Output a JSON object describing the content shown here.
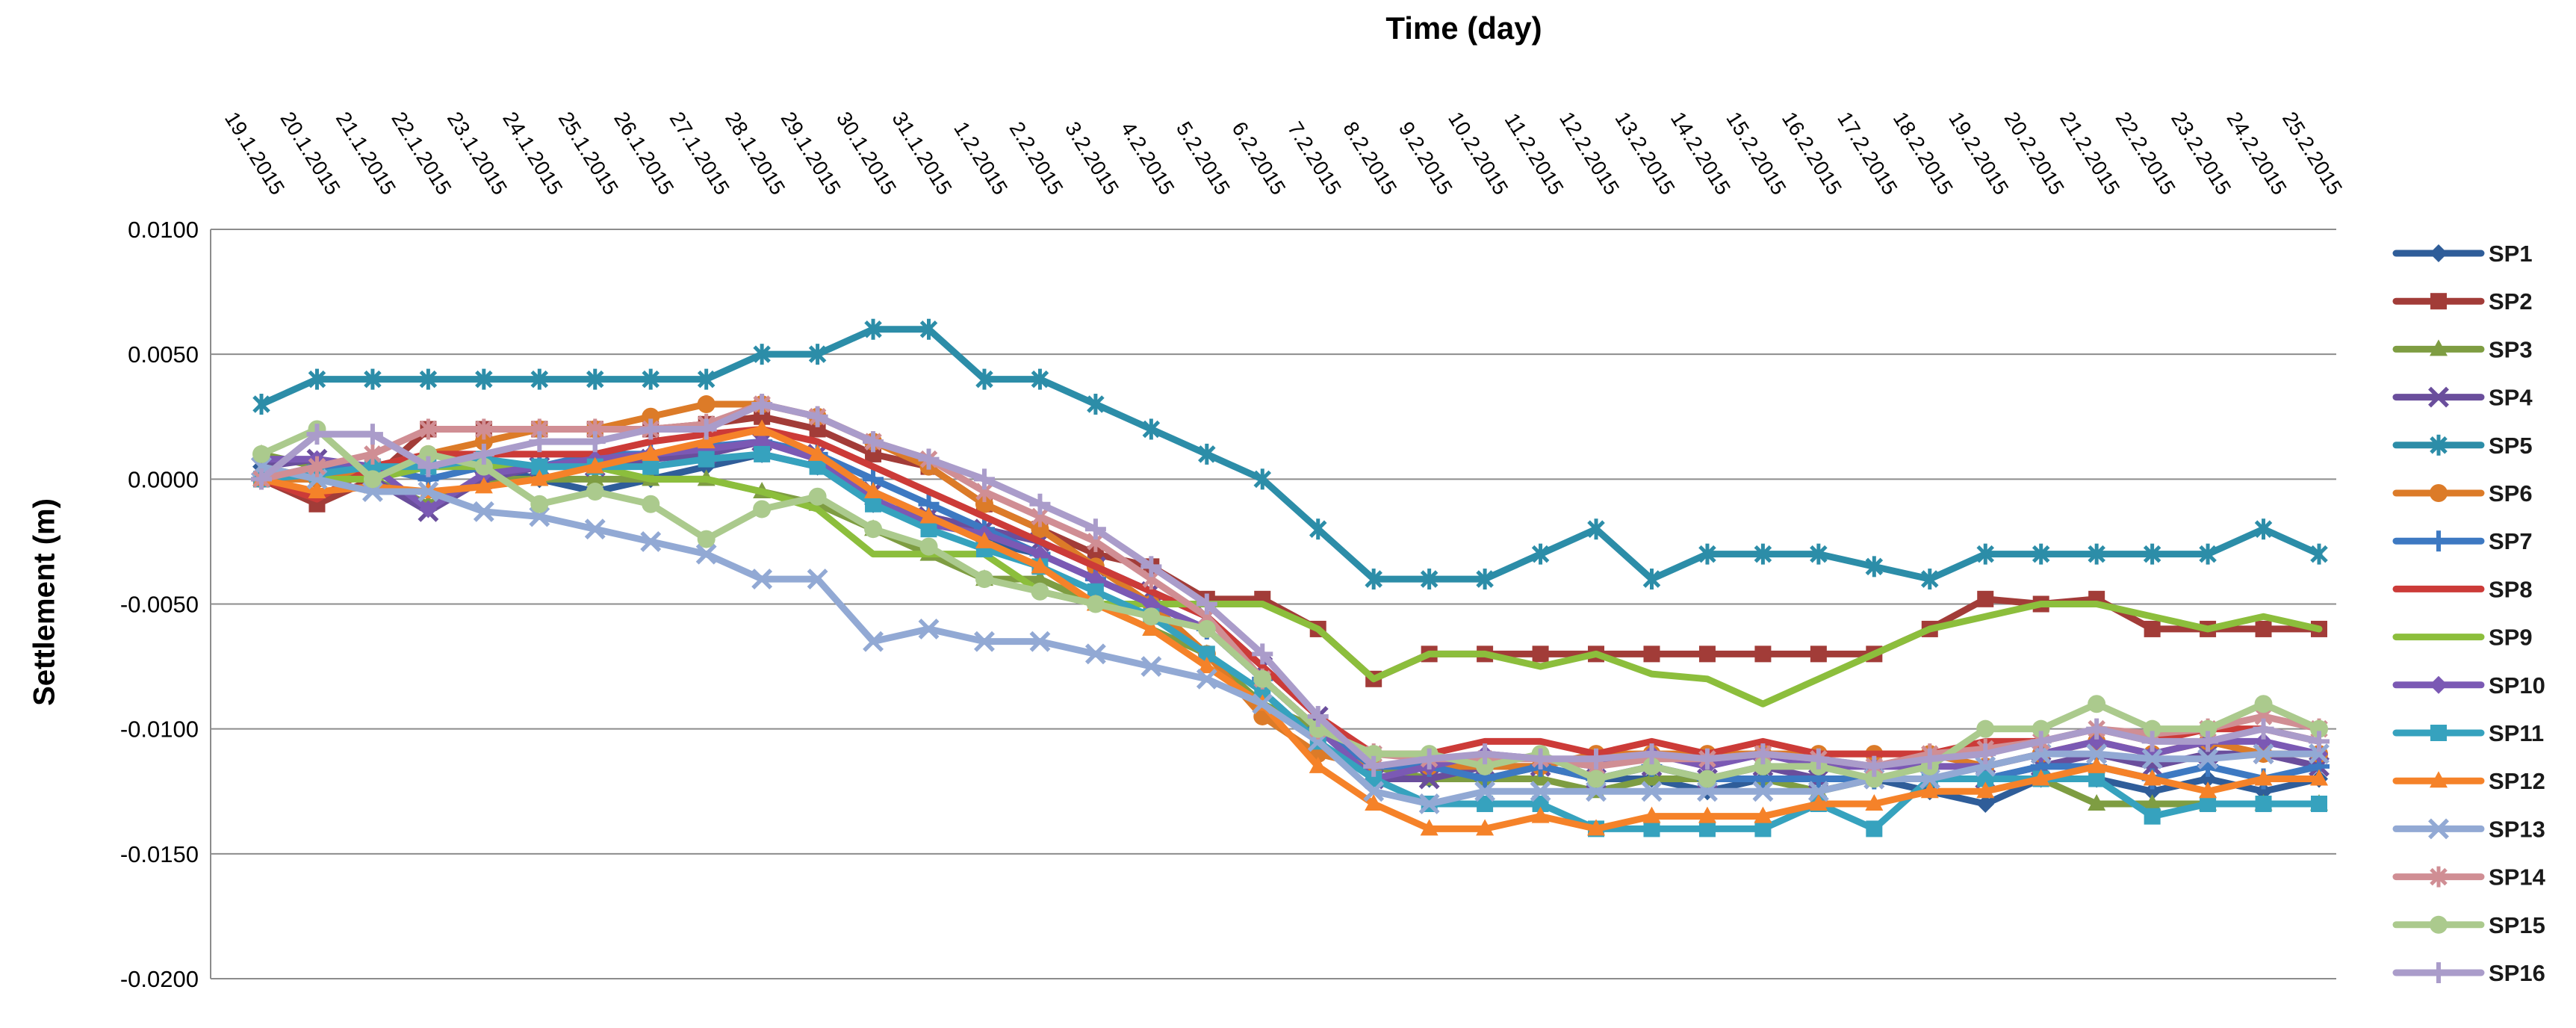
{
  "title": "Time (day)",
  "y_axis": {
    "label": "Settlement (m)",
    "tick_labels": [
      "0.0100",
      "0.0050",
      "0.0000",
      "-0.0050",
      "-0.0100",
      "-0.0150",
      "-0.0200"
    ],
    "tick_values": [
      0.01,
      0.005,
      0.0,
      -0.005,
      -0.01,
      -0.015,
      -0.02
    ]
  },
  "chart_data": {
    "type": "line",
    "title": "Time (day)",
    "xlabel": "Time (day)",
    "ylabel": "Settlement (m)",
    "ylim": [
      -0.02,
      0.01
    ],
    "grid": true,
    "legend_position": "right",
    "x": [
      "19.1.2015",
      "20.1.2015",
      "21.1.2015",
      "22.1.2015",
      "23.1.2015",
      "24.1.2015",
      "25.1.2015",
      "26.1.2015",
      "27.1.2015",
      "28.1.2015",
      "29.1.2015",
      "30.1.2015",
      "31.1.2015",
      "1.2.2015",
      "2.2.2015",
      "3.2.2015",
      "4.2.2015",
      "5.2.2015",
      "6.2.2015",
      "7.2.2015",
      "8.2.2015",
      "9.2.2015",
      "10.2.2015",
      "11.2.2015",
      "12.2.2015",
      "13.2.2015",
      "14.2.2015",
      "15.2.2015",
      "16.2.2015",
      "17.2.2015",
      "18.2.2015",
      "19.2.2015",
      "20.2.2015",
      "21.2.2015",
      "22.2.2015",
      "23.2.2015",
      "24.2.2015",
      "25.2.2015"
    ],
    "series": [
      {
        "name": "SP1",
        "color": "#2F5D99",
        "marker": "diamond",
        "values": [
          0.0005,
          0.0,
          0.0002,
          0.0005,
          0.0005,
          0.0,
          -0.0005,
          0.0,
          0.0005,
          0.001,
          0.0005,
          -0.001,
          -0.0015,
          -0.0025,
          -0.003,
          -0.004,
          -0.005,
          -0.006,
          -0.008,
          -0.01,
          -0.0115,
          -0.012,
          -0.012,
          -0.0115,
          -0.012,
          -0.012,
          -0.0125,
          -0.012,
          -0.012,
          -0.012,
          -0.0125,
          -0.013,
          -0.012,
          -0.012,
          -0.0125,
          -0.012,
          -0.0125,
          -0.012
        ]
      },
      {
        "name": "SP2",
        "color": "#A23C38",
        "marker": "square",
        "values": [
          0.0,
          -0.001,
          0.0,
          0.002,
          0.002,
          0.002,
          0.002,
          0.002,
          0.0022,
          0.0025,
          0.002,
          0.001,
          0.0005,
          -0.001,
          -0.002,
          -0.003,
          -0.0035,
          -0.0048,
          -0.0048,
          -0.006,
          -0.008,
          -0.007,
          -0.007,
          -0.007,
          -0.007,
          -0.007,
          -0.007,
          -0.007,
          -0.007,
          -0.007,
          -0.006,
          -0.0048,
          -0.005,
          -0.0048,
          -0.006,
          -0.006,
          -0.006,
          -0.006
        ]
      },
      {
        "name": "SP3",
        "color": "#7E9D42",
        "marker": "triangle",
        "values": [
          0.001,
          0.0005,
          0.0,
          -0.001,
          0.0,
          0.0,
          0.0,
          0.0,
          0.0,
          -0.0005,
          -0.001,
          -0.002,
          -0.003,
          -0.004,
          -0.004,
          -0.005,
          -0.006,
          -0.007,
          -0.009,
          -0.01,
          -0.0115,
          -0.012,
          -0.012,
          -0.012,
          -0.0125,
          -0.012,
          -0.012,
          -0.012,
          -0.0125,
          -0.012,
          -0.012,
          -0.012,
          -0.012,
          -0.013,
          -0.013,
          -0.013,
          -0.013,
          -0.013
        ]
      },
      {
        "name": "SP4",
        "color": "#6A4E9C",
        "marker": "x",
        "values": [
          0.0005,
          0.0008,
          0.0,
          -0.0013,
          0.0,
          0.0005,
          0.0005,
          0.0008,
          0.001,
          0.0015,
          0.001,
          -0.0005,
          -0.0015,
          -0.002,
          -0.0025,
          -0.0035,
          -0.0045,
          -0.0055,
          -0.0075,
          -0.0095,
          -0.012,
          -0.012,
          -0.0115,
          -0.0115,
          -0.012,
          -0.0115,
          -0.012,
          -0.0115,
          -0.012,
          -0.012,
          -0.012,
          -0.012,
          -0.0115,
          -0.011,
          -0.0115,
          -0.011,
          -0.011,
          -0.0115
        ]
      },
      {
        "name": "SP5",
        "color": "#2C8DA8",
        "marker": "asterisk",
        "values": [
          0.003,
          0.004,
          0.004,
          0.004,
          0.004,
          0.004,
          0.004,
          0.004,
          0.004,
          0.005,
          0.005,
          0.006,
          0.006,
          0.004,
          0.004,
          0.003,
          0.002,
          0.001,
          0.0,
          -0.002,
          -0.004,
          -0.004,
          -0.004,
          -0.003,
          -0.002,
          -0.004,
          -0.003,
          -0.003,
          -0.003,
          -0.0035,
          -0.004,
          -0.003,
          -0.003,
          -0.003,
          -0.003,
          -0.003,
          -0.002,
          -0.003
        ]
      },
      {
        "name": "SP6",
        "color": "#DC7B28",
        "marker": "circle",
        "values": [
          0.0,
          0.0,
          0.0005,
          0.001,
          0.0015,
          0.002,
          0.002,
          0.0025,
          0.003,
          0.003,
          0.0025,
          0.0015,
          0.0005,
          -0.001,
          -0.002,
          -0.0035,
          -0.005,
          -0.007,
          -0.0095,
          -0.011,
          -0.0115,
          -0.0115,
          -0.0115,
          -0.0115,
          -0.011,
          -0.011,
          -0.011,
          -0.011,
          -0.011,
          -0.011,
          -0.011,
          -0.0115,
          -0.011,
          -0.0105,
          -0.011,
          -0.0105,
          -0.011,
          -0.011
        ]
      },
      {
        "name": "SP7",
        "color": "#3D79C2",
        "marker": "plus",
        "values": [
          0.0,
          0.0005,
          0.0005,
          0.0,
          0.0005,
          0.0005,
          0.001,
          0.001,
          0.0013,
          0.0015,
          0.001,
          0.0,
          -0.001,
          -0.002,
          -0.003,
          -0.004,
          -0.005,
          -0.006,
          -0.008,
          -0.01,
          -0.0115,
          -0.0115,
          -0.012,
          -0.0115,
          -0.012,
          -0.0115,
          -0.012,
          -0.012,
          -0.012,
          -0.012,
          -0.012,
          -0.012,
          -0.0115,
          -0.0115,
          -0.012,
          -0.0115,
          -0.012,
          -0.0115
        ]
      },
      {
        "name": "SP8",
        "color": "#CC3B38",
        "marker": "none",
        "values": [
          0.0,
          -0.0008,
          0.0005,
          0.001,
          0.001,
          0.001,
          0.001,
          0.0015,
          0.0018,
          0.002,
          0.0015,
          0.0005,
          -0.0005,
          -0.0015,
          -0.0025,
          -0.0035,
          -0.0045,
          -0.0055,
          -0.0075,
          -0.0095,
          -0.011,
          -0.011,
          -0.0105,
          -0.0105,
          -0.011,
          -0.0105,
          -0.011,
          -0.0105,
          -0.011,
          -0.011,
          -0.011,
          -0.0105,
          -0.0105,
          -0.01,
          -0.0105,
          -0.01,
          -0.01,
          -0.0105
        ]
      },
      {
        "name": "SP9",
        "color": "#8CBE3C",
        "marker": "none",
        "values": [
          0.0005,
          0.0,
          0.0,
          0.0005,
          0.0005,
          0.0005,
          0.0005,
          0.0,
          0.0,
          -0.0005,
          -0.0012,
          -0.003,
          -0.003,
          -0.003,
          -0.0045,
          -0.005,
          -0.005,
          -0.005,
          -0.005,
          -0.006,
          -0.008,
          -0.007,
          -0.007,
          -0.0075,
          -0.007,
          -0.0078,
          -0.008,
          -0.009,
          -0.008,
          -0.007,
          -0.006,
          -0.0055,
          -0.005,
          -0.005,
          -0.0055,
          -0.006,
          -0.0055,
          -0.006
        ]
      },
      {
        "name": "SP10",
        "color": "#7B59B4",
        "marker": "diamond",
        "values": [
          0.0008,
          0.0008,
          0.0005,
          -0.0012,
          0.0002,
          0.0005,
          0.0008,
          0.001,
          0.0012,
          0.0015,
          0.0008,
          -0.0008,
          -0.0018,
          -0.0022,
          -0.003,
          -0.004,
          -0.005,
          -0.006,
          -0.008,
          -0.01,
          -0.012,
          -0.0115,
          -0.011,
          -0.0112,
          -0.0115,
          -0.011,
          -0.0115,
          -0.011,
          -0.0115,
          -0.0115,
          -0.0115,
          -0.0115,
          -0.011,
          -0.0105,
          -0.011,
          -0.0105,
          -0.0105,
          -0.011
        ]
      },
      {
        "name": "SP11",
        "color": "#36A2BE",
        "marker": "square",
        "values": [
          0.0,
          0.0002,
          0.0005,
          0.0005,
          0.0008,
          0.0005,
          0.0005,
          0.0005,
          0.0008,
          0.001,
          0.0005,
          -0.001,
          -0.002,
          -0.0028,
          -0.0035,
          -0.0045,
          -0.0055,
          -0.007,
          -0.0085,
          -0.0105,
          -0.012,
          -0.013,
          -0.013,
          -0.013,
          -0.014,
          -0.014,
          -0.014,
          -0.014,
          -0.013,
          -0.014,
          -0.012,
          -0.012,
          -0.012,
          -0.012,
          -0.0135,
          -0.013,
          -0.013,
          -0.013
        ]
      },
      {
        "name": "SP12",
        "color": "#F58229",
        "marker": "triangle",
        "values": [
          0.0,
          -0.0005,
          -0.0003,
          -0.0005,
          -0.0003,
          0.0,
          0.0005,
          0.001,
          0.0015,
          0.002,
          0.001,
          -0.0005,
          -0.0015,
          -0.0025,
          -0.0035,
          -0.005,
          -0.006,
          -0.0075,
          -0.009,
          -0.0115,
          -0.013,
          -0.014,
          -0.014,
          -0.0135,
          -0.014,
          -0.0135,
          -0.0135,
          -0.0135,
          -0.013,
          -0.013,
          -0.0125,
          -0.0125,
          -0.012,
          -0.0115,
          -0.012,
          -0.0125,
          -0.012,
          -0.012
        ]
      },
      {
        "name": "SP13",
        "color": "#92A9D4",
        "marker": "x",
        "values": [
          0.0005,
          0.0,
          -0.0005,
          -0.0005,
          -0.0013,
          -0.0015,
          -0.002,
          -0.0025,
          -0.003,
          -0.004,
          -0.004,
          -0.0065,
          -0.006,
          -0.0065,
          -0.0065,
          -0.007,
          -0.0075,
          -0.008,
          -0.009,
          -0.0105,
          -0.0125,
          -0.013,
          -0.0125,
          -0.0125,
          -0.0125,
          -0.0125,
          -0.0125,
          -0.0125,
          -0.0125,
          -0.012,
          -0.012,
          -0.0115,
          -0.011,
          -0.011,
          -0.0112,
          -0.0112,
          -0.011,
          -0.011
        ]
      },
      {
        "name": "SP14",
        "color": "#D08E94",
        "marker": "asterisk",
        "values": [
          0.0,
          0.0005,
          0.001,
          0.002,
          0.002,
          0.002,
          0.002,
          0.002,
          0.0022,
          0.003,
          0.0025,
          0.0015,
          0.0008,
          -0.0005,
          -0.0015,
          -0.0025,
          -0.004,
          -0.0055,
          -0.008,
          -0.01,
          -0.011,
          -0.0112,
          -0.0112,
          -0.0112,
          -0.0115,
          -0.0112,
          -0.0112,
          -0.011,
          -0.0112,
          -0.0115,
          -0.011,
          -0.0108,
          -0.0105,
          -0.01,
          -0.0102,
          -0.01,
          -0.0095,
          -0.01
        ]
      },
      {
        "name": "SP15",
        "color": "#ABCA8D",
        "marker": "circle",
        "values": [
          0.001,
          0.002,
          0.0,
          0.001,
          0.0005,
          -0.001,
          -0.0005,
          -0.001,
          -0.0024,
          -0.0012,
          -0.0007,
          -0.002,
          -0.0027,
          -0.004,
          -0.0045,
          -0.005,
          -0.0055,
          -0.006,
          -0.008,
          -0.01,
          -0.011,
          -0.011,
          -0.0115,
          -0.011,
          -0.012,
          -0.0115,
          -0.012,
          -0.0115,
          -0.0115,
          -0.012,
          -0.0115,
          -0.01,
          -0.01,
          -0.009,
          -0.01,
          -0.01,
          -0.009,
          -0.01
        ]
      },
      {
        "name": "SP16",
        "color": "#AA9CCA",
        "marker": "plus",
        "values": [
          0.0,
          0.0018,
          0.0018,
          0.0005,
          0.001,
          0.0015,
          0.0015,
          0.002,
          0.002,
          0.003,
          0.0025,
          0.0015,
          0.0008,
          0.0,
          -0.001,
          -0.002,
          -0.0035,
          -0.005,
          -0.007,
          -0.0095,
          -0.0115,
          -0.0112,
          -0.011,
          -0.0112,
          -0.0112,
          -0.011,
          -0.0112,
          -0.011,
          -0.0112,
          -0.0115,
          -0.0112,
          -0.011,
          -0.0105,
          -0.01,
          -0.0105,
          -0.0105,
          -0.01,
          -0.0105
        ]
      }
    ]
  }
}
